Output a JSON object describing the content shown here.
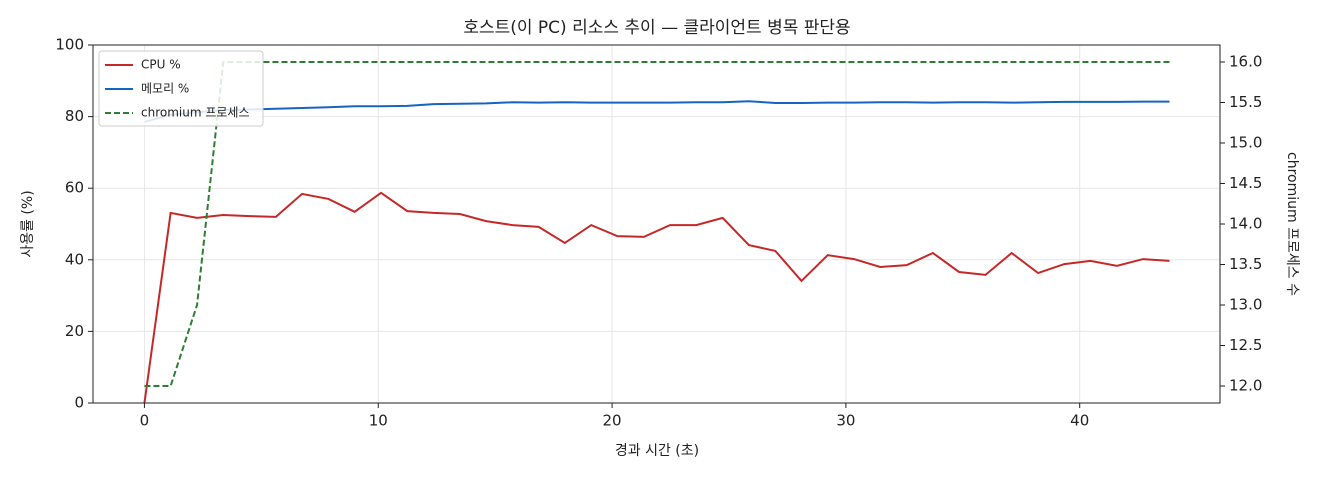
{
  "chart_data": {
    "type": "line",
    "title": "호스트(이 PC) 리소스 추이 — 클라이언트 병목 판단용",
    "x_label": "경과 시간 (초)",
    "y_label": "사용률 (%)",
    "y2_label": "chromium 프로세스 수",
    "x": [
      0,
      1.12,
      2.25,
      3.37,
      4.5,
      5.62,
      6.74,
      7.87,
      8.99,
      10.12,
      11.24,
      12.36,
      13.49,
      14.61,
      15.74,
      16.86,
      17.98,
      19.11,
      20.23,
      21.36,
      22.48,
      23.6,
      24.73,
      25.85,
      26.98,
      28.1,
      29.22,
      30.35,
      31.47,
      32.6,
      33.72,
      34.84,
      35.97,
      37.09,
      38.22,
      39.34,
      40.46,
      41.59,
      42.71,
      43.84
    ],
    "series": [
      {
        "name": "CPU %",
        "color": "#c62828",
        "linestyle": "solid",
        "values": [
          0,
          53.1,
          51.7,
          52.5,
          52.2,
          52,
          58.4,
          57,
          53.4,
          58.7,
          53.6,
          53.1,
          52.8,
          50.8,
          49.7,
          49.2,
          44.7,
          49.7,
          46.6,
          46.4,
          49.7,
          49.7,
          51.7,
          44.1,
          42.5,
          34.1,
          41.3,
          40.2,
          38,
          38.5,
          41.9,
          36.6,
          35.8,
          41.9,
          36.3,
          38.8,
          39.7,
          38.3,
          40.2,
          39.7
        ]
      },
      {
        "name": "메모리 %",
        "color": "#1565c0",
        "linestyle": "solid",
        "values": [
          78.5,
          80.5,
          81.2,
          81.8,
          82,
          82.2,
          82.4,
          82.6,
          82.9,
          82.9,
          83,
          83.5,
          83.6,
          83.7,
          84,
          83.9,
          84,
          83.9,
          83.9,
          83.9,
          83.9,
          84,
          84,
          84.3,
          83.8,
          83.8,
          83.9,
          83.9,
          84,
          84,
          83.9,
          84,
          84,
          83.9,
          84,
          84.1,
          84.1,
          84.1,
          84.2,
          84.2
        ]
      },
      {
        "name": "chromium 프로세스",
        "color": "#2e7d32",
        "linestyle": "dashed",
        "axis": "y2",
        "values": [
          12,
          12,
          13,
          16,
          16,
          16,
          16,
          16,
          16,
          16,
          16,
          16,
          16,
          16,
          16,
          16,
          16,
          16,
          16,
          16,
          16,
          16,
          16,
          16,
          16,
          16,
          16,
          16,
          16,
          16,
          16,
          16,
          16,
          16,
          16,
          16,
          16,
          16,
          16,
          16
        ]
      }
    ],
    "xlim": [
      -2.2,
      46
    ],
    "xticks": [
      0,
      10,
      20,
      30,
      40
    ],
    "ylim": [
      0,
      100
    ],
    "yticks": [
      0,
      20,
      40,
      60,
      80,
      100
    ],
    "y2lim": [
      11.79,
      16.21
    ],
    "y2ticks": [
      {
        "value": 12,
        "label": "12.0"
      },
      {
        "value": 12.5,
        "label": "12.5"
      },
      {
        "value": 13,
        "label": "13.0"
      },
      {
        "value": 13.5,
        "label": "13.5"
      },
      {
        "value": 14,
        "label": "14.0"
      },
      {
        "value": 14.5,
        "label": "14.5"
      },
      {
        "value": 15,
        "label": "15.0"
      },
      {
        "value": 15.5,
        "label": "15.5"
      },
      {
        "value": 16,
        "label": "16.0"
      }
    ],
    "grid": true,
    "legend": "upper-left"
  }
}
